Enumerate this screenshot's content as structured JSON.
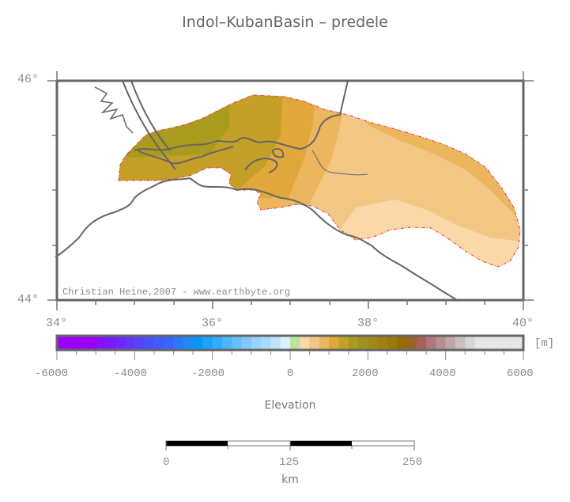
{
  "title": "Indol–KubanBasin – predele",
  "map": {
    "lat_labels": [
      "46°",
      "44°"
    ],
    "lon_labels": [
      "34°",
      "36°",
      "38°",
      "40°"
    ],
    "credit": "Christian Heine,2007 - www.earthbyte.org",
    "extent": {
      "lon_min": 34,
      "lon_max": 40,
      "lat_min": 44,
      "lat_max": 46
    },
    "outline_color": "#ee3333",
    "coastline_color": "#666666"
  },
  "colorbar": {
    "unit": "[m]",
    "tick_labels": [
      "-6000",
      "-4000",
      "-2000",
      "0",
      "2000",
      "4000",
      "6000"
    ],
    "title": "Elevation",
    "range": [
      -6000,
      6000
    ],
    "colors": [
      "#9900ff",
      "#9900ff",
      "#9900ff",
      "#9900ff",
      "#8c0dff",
      "#7a1aff",
      "#6e28ff",
      "#6336ff",
      "#5544ff",
      "#4a50ff",
      "#3e5cff",
      "#3468ff",
      "#2a78ff",
      "#1e88ff",
      "#0099ff",
      "#1aa3ff",
      "#33acff",
      "#4db5ff",
      "#66bfff",
      "#80c8ff",
      "#99d1ff",
      "#a9d9ff",
      "#bfe3ff",
      "#d9f0ff",
      "#bde59a",
      "#fad8a8",
      "#f2c784",
      "#ebb65e",
      "#e0a83a",
      "#c4a028",
      "#aa9a1e",
      "#a09020",
      "#a08818",
      "#a08010",
      "#9c7808",
      "#9a6c00",
      "#9a6424",
      "#a86060",
      "#b07878",
      "#b89090",
      "#c0a6a6",
      "#cbc0c0",
      "#d8d6d6",
      "#e6e6e6",
      "#e6e6e6",
      "#e6e6e6",
      "#e6e6e6",
      "#e6e6e6"
    ]
  },
  "scalebar": {
    "tick_labels": [
      "0",
      "125",
      "250"
    ],
    "unit": "km"
  }
}
